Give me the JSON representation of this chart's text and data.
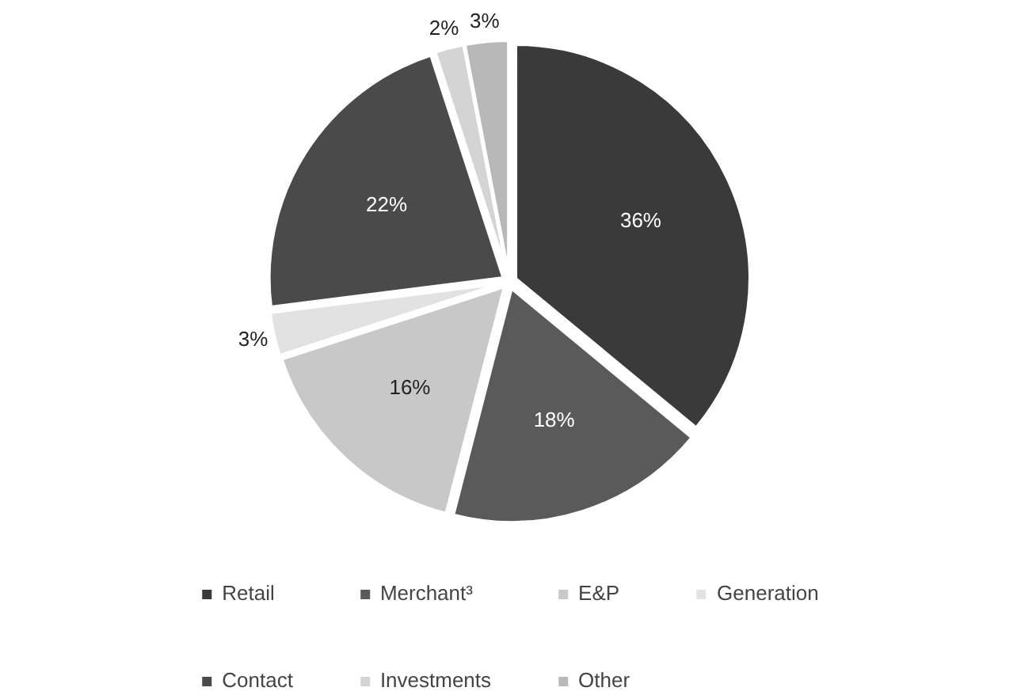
{
  "chart_data": {
    "type": "pie",
    "categories": [
      "Retail",
      "Merchant³",
      "E&P",
      "Generation",
      "Contact",
      "Investments",
      "Other"
    ],
    "values": [
      36,
      18,
      16,
      3,
      22,
      2,
      3
    ],
    "colors": [
      "#3a3a3a",
      "#5a5a5a",
      "#c8c8c8",
      "#e2e2e2",
      "#4a4a4a",
      "#d4d4d4",
      "#b8b8b8"
    ],
    "data_labels": true,
    "value_labels": [
      "36%",
      "18%",
      "16%",
      "3%",
      "22%",
      "2%",
      "3%"
    ],
    "legend": "bottom"
  }
}
